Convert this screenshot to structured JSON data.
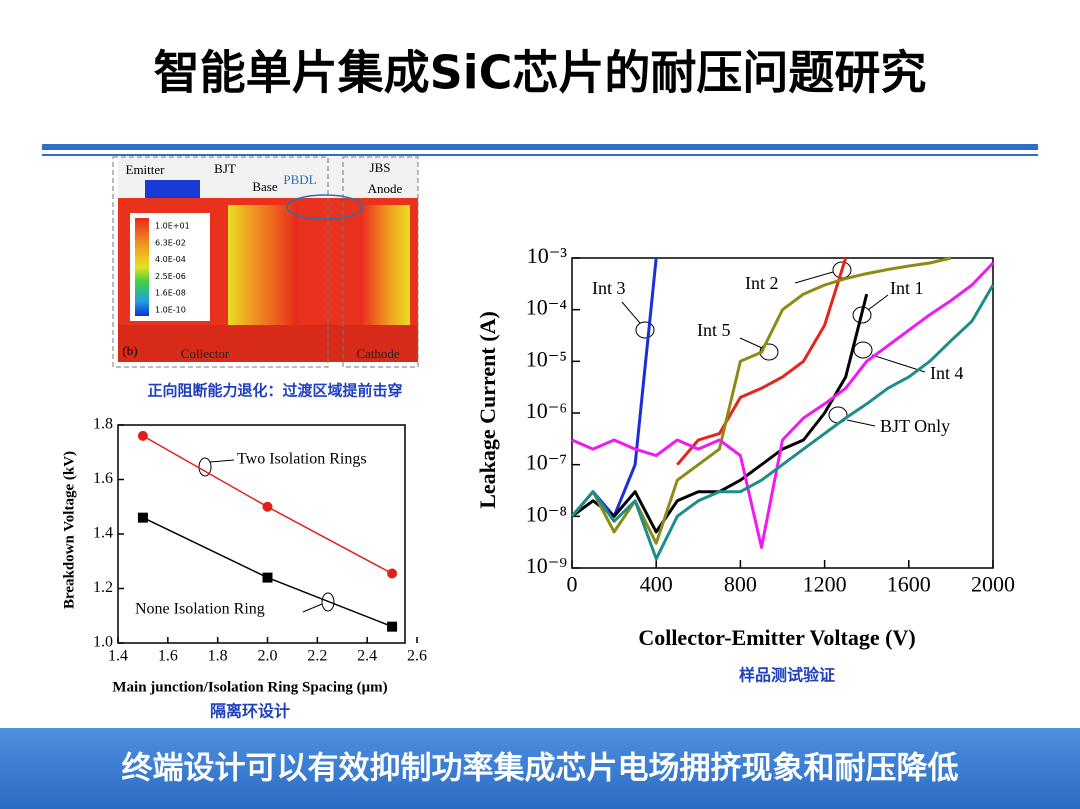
{
  "slide": {
    "title": "智能单片集成SiC芯片的耐压问题研究",
    "footer": "终端设计可以有效抑制功率集成芯片电场拥挤现象和耐压降低"
  },
  "figure": {
    "labels": [
      "Emitter",
      "BJT",
      "Base",
      "PBDL",
      "JBS",
      "Anode",
      "(b)",
      "Collector",
      "Cathode"
    ],
    "legend": [
      "1.0E+01",
      "6.3E-02",
      "4.0E-04",
      "2.5E-06",
      "1.6E-08",
      "1.0E-10"
    ],
    "caption": "正向阻断能力退化：过渡区域提前击穿"
  },
  "chart_data": [
    {
      "type": "line",
      "xlabel": "Main junction/Isolation Ring Spacing (μm)",
      "ylabel": "Breakdown Voltage (kV)",
      "caption": "隔离环设计",
      "x": [
        1.5,
        2.0,
        2.5
      ],
      "series": [
        {
          "name": "Two Isolation Rings",
          "color": "#e0201b",
          "marker": "circle",
          "values": [
            1.76,
            1.5,
            1.255
          ]
        },
        {
          "name": "None Isolation Ring",
          "color": "#000000",
          "marker": "square",
          "values": [
            1.46,
            1.24,
            1.06
          ]
        }
      ],
      "xlim": [
        1.4,
        2.6
      ],
      "xticks": [
        1.4,
        1.6,
        1.8,
        {
          "value": 2,
          "label": "2.0"
        },
        2.2,
        2.4,
        2.6
      ],
      "ylim": [
        1.0,
        1.8
      ],
      "yticks": [
        {
          "value": 1,
          "label": "1.0"
        },
        1.2,
        1.4,
        1.6,
        1.8
      ],
      "grid": false
    },
    {
      "type": "line",
      "xlabel": "Collector-Emitter Voltage (V)",
      "ylabel": "Leakage Current (A)",
      "caption": "样品测试验证",
      "log_y": true,
      "x": [
        0,
        100,
        200,
        300,
        400,
        500,
        600,
        700,
        800,
        900,
        1000,
        1100,
        1200,
        1300,
        1400,
        1500,
        1600,
        1700,
        1800,
        1900,
        2000
      ],
      "series": [
        {
          "name": "Int 3",
          "color": "#1a2fd6",
          "values": [
            1e-08,
            3e-08,
            1e-08,
            1e-07,
            0.001,
            null,
            null,
            null,
            null,
            null,
            null,
            null,
            null,
            null,
            null,
            null,
            null,
            null,
            null,
            null,
            null
          ]
        },
        {
          "name": "Int 2",
          "color": "#e8231c",
          "values": [
            null,
            null,
            null,
            null,
            null,
            1e-07,
            3e-07,
            4e-07,
            2e-06,
            3e-06,
            5e-06,
            1e-05,
            5e-05,
            0.001,
            null,
            null,
            null,
            null,
            null,
            null,
            null
          ]
        },
        {
          "name": "Int 1",
          "color": "#000000",
          "values": [
            1e-08,
            2e-08,
            1e-08,
            3e-08,
            5e-09,
            2e-08,
            3e-08,
            3e-08,
            5e-08,
            1e-07,
            2e-07,
            3e-07,
            1e-06,
            5e-06,
            0.0002,
            null,
            null,
            null,
            null,
            null,
            null
          ]
        },
        {
          "name": "Int 5",
          "color": "#8c8c14",
          "values": [
            1e-08,
            3e-08,
            5e-09,
            2e-08,
            3e-09,
            5e-08,
            1e-07,
            2e-07,
            1e-05,
            1.5e-05,
            0.0001,
            0.0002,
            0.0003,
            0.0004,
            0.0005,
            0.0006,
            0.0007,
            0.0008,
            0.001,
            null,
            null
          ]
        },
        {
          "name": "Int 4",
          "color": "#f019f0",
          "values": [
            3e-07,
            2e-07,
            3e-07,
            2e-07,
            1.5e-07,
            3e-07,
            2e-07,
            3e-07,
            1.5e-07,
            2.5e-09,
            3e-07,
            8e-07,
            1.5e-06,
            3e-06,
            1e-05,
            2e-05,
            4e-05,
            8e-05,
            0.00015,
            0.0003,
            0.0008
          ]
        },
        {
          "name": "BJT Only",
          "color": "#1f8c8c",
          "values": [
            1e-08,
            3e-08,
            8e-09,
            2e-08,
            1.5e-09,
            1e-08,
            2e-08,
            3e-08,
            3e-08,
            5e-08,
            1e-07,
            2e-07,
            4e-07,
            8e-07,
            1.5e-06,
            3e-06,
            5e-06,
            1e-05,
            2.5e-05,
            6e-05,
            0.0003
          ]
        }
      ],
      "xlim": [
        0,
        2000
      ],
      "xticks": [
        0,
        400,
        800,
        1200,
        1600,
        2000
      ],
      "ylim": [
        1e-09,
        0.001
      ],
      "yticks": [
        {
          "value": 1e-09,
          "label": "10⁻⁹"
        },
        {
          "value": 1e-08,
          "label": "10⁻⁸"
        },
        {
          "value": 1e-07,
          "label": "10⁻⁷"
        },
        {
          "value": 1e-06,
          "label": "10⁻⁶"
        },
        {
          "value": 1e-05,
          "label": "10⁻⁵"
        },
        {
          "value": 0.0001,
          "label": "10⁻⁴"
        },
        {
          "value": 0.001,
          "label": "10⁻³"
        }
      ],
      "grid": false
    }
  ]
}
